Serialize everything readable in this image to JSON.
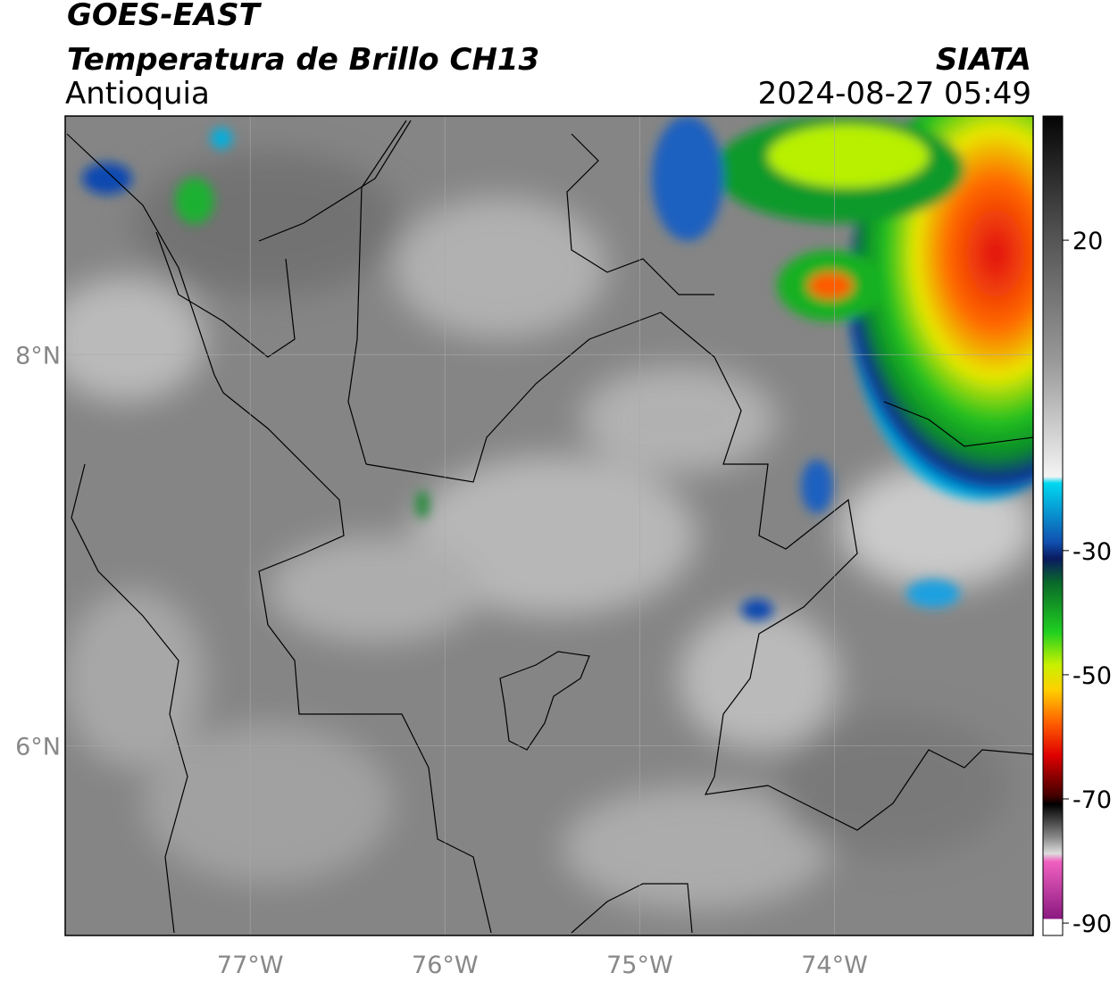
{
  "header": {
    "title": "GOES-EAST",
    "subtitle": "Temperatura de Brillo CH13",
    "region": "Antioquia",
    "source": "SIATA",
    "timestamp": "2024-08-27 05:49"
  },
  "map": {
    "xlim": [
      -77.95,
      -72.98
    ],
    "ylim": [
      5.03,
      9.22
    ],
    "xticks": [
      {
        "value": -77,
        "label": "77°W"
      },
      {
        "value": -76,
        "label": "76°W"
      },
      {
        "value": -75,
        "label": "75°W"
      },
      {
        "value": -74,
        "label": "74°W"
      }
    ],
    "yticks": [
      {
        "value": 8,
        "label": "8°N"
      },
      {
        "value": 6,
        "label": "6°N"
      }
    ],
    "grid": true
  },
  "colorbar": {
    "lim": [
      -92,
      40
    ],
    "ticks": [
      20,
      -30,
      -50,
      -70,
      -90
    ]
  }
}
